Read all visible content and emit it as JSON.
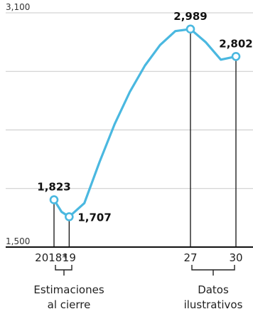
{
  "chart_data": {
    "type": "line",
    "x": [
      2018,
      2018.5,
      2019,
      2020,
      2021,
      2022,
      2023,
      2024,
      2025,
      2026,
      2027,
      2028,
      2029,
      2030
    ],
    "values": [
      1823,
      1740,
      1707,
      1800,
      2080,
      2340,
      2560,
      2740,
      2880,
      2975,
      2989,
      2900,
      2780,
      2802
    ],
    "labeled_points": [
      {
        "x": 2018,
        "value": 1823,
        "label": "1,823"
      },
      {
        "x": 2019,
        "value": 1707,
        "label": "1,707"
      },
      {
        "x": 2027,
        "value": 2989,
        "label": "2,989"
      },
      {
        "x": 2030,
        "value": 2802,
        "label": "2,802"
      }
    ],
    "x_ticks": [
      {
        "x": 2018,
        "label": "2018*"
      },
      {
        "x": 2019,
        "label": "19"
      },
      {
        "x": 2027,
        "label": "27"
      },
      {
        "x": 2030,
        "label": "30"
      }
    ],
    "y_ticks": [
      {
        "value": 1500,
        "label": "1,500"
      },
      {
        "value": 3100,
        "label": "3,100"
      }
    ],
    "ylim": [
      1500,
      3100
    ],
    "grid": true,
    "line_color": "#4ab8e0",
    "title": "",
    "xlabel": "",
    "ylabel": "",
    "annotations": {
      "estimates": {
        "line1": "Estimaciones",
        "line2": "al cierre"
      },
      "illustrative": {
        "line1": "Datos",
        "line2": "ilustrativos"
      }
    }
  }
}
